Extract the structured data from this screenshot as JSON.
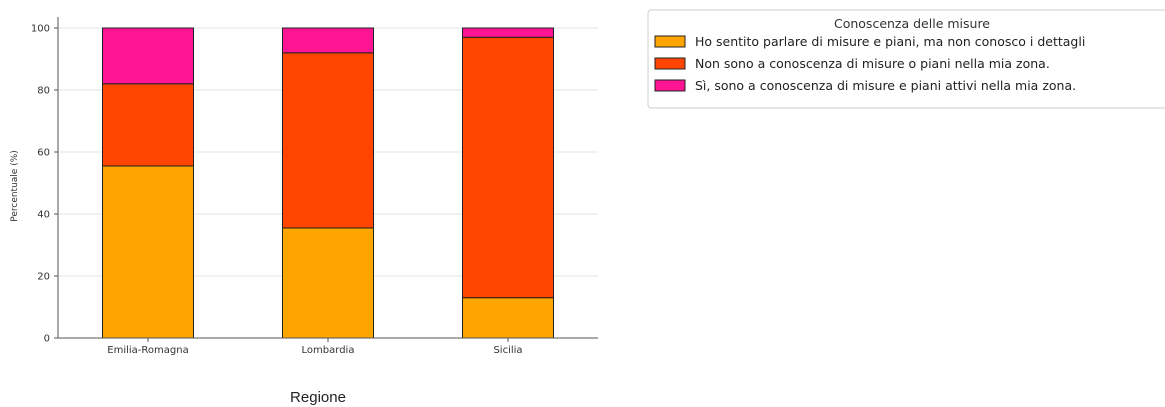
{
  "chart_data": {
    "type": "bar",
    "stacked": true,
    "categories": [
      "Emilia-Romagna",
      "Lombardia",
      "Sicilia"
    ],
    "series": [
      {
        "name": "Ho sentito parlare di misure e piani, ma non conosco i dettagli",
        "values": [
          55.5,
          35.5,
          13.0
        ],
        "color": "#ffa500"
      },
      {
        "name": "Non sono a conoscenza di misure o piani nella mia zona.",
        "values": [
          26.5,
          56.5,
          84.0
        ],
        "color": "#ff4500"
      },
      {
        "name": "Sì, sono a conoscenza di misure e piani attivi nella mia zona.",
        "values": [
          18.0,
          8.0,
          3.0
        ],
        "color": "#ff1493"
      }
    ],
    "xlabel": "Regione",
    "ylabel": "Percentuale (%)",
    "ylim": [
      0,
      100
    ],
    "yticks": [
      "0",
      "20",
      "40",
      "60",
      "80",
      "100"
    ],
    "legend_title": "Conoscenza delle misure",
    "legend_position": "upper right, outside plot",
    "grid": true
  }
}
